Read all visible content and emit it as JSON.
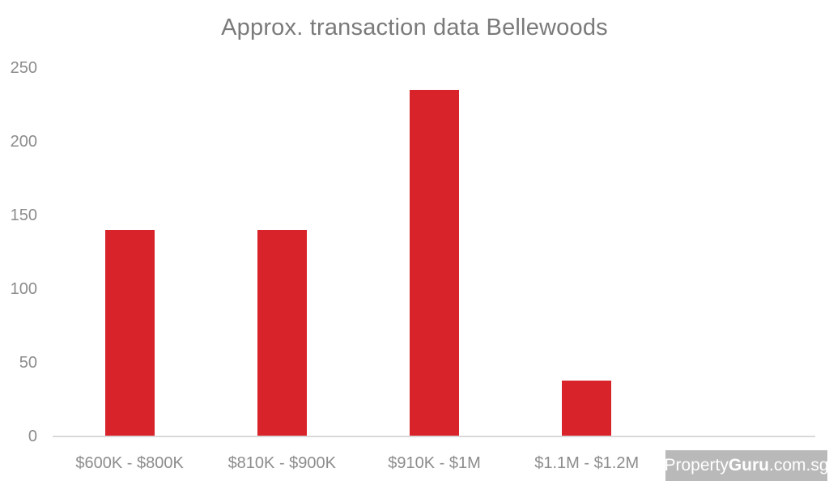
{
  "chart_data": {
    "type": "bar",
    "title": "Approx. transaction data Bellewoods",
    "categories": [
      "$600K - $800K",
      "$810K - $900K",
      "$910K - $1M",
      "$1.1M - $1.2M"
    ],
    "values": [
      140,
      140,
      235,
      38
    ],
    "xlabel": "",
    "ylabel": "",
    "ylim": [
      0,
      250
    ],
    "y_ticks": [
      0,
      50,
      100,
      150,
      200,
      250
    ],
    "grid": false,
    "legend": false,
    "bar_color": "#d8232a"
  },
  "watermark": {
    "part1": "Property",
    "part2": "Guru",
    "part3": ".com.sg"
  },
  "colors": {
    "bar": "#d8232a",
    "title_text": "#7a7a7a",
    "axis_text": "#8c8c8c",
    "axis_line": "#d9d9d9",
    "watermark_bg": "#b9b9b9",
    "watermark_text": "#ffffff",
    "background": "#ffffff"
  }
}
